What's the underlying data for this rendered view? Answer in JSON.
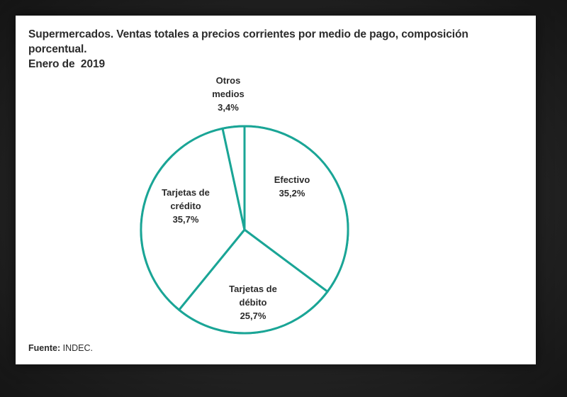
{
  "chart_data": {
    "type": "pie",
    "title": "Supermercados. Ventas totales a precios corrientes por medio de pago, composición porcentual.",
    "subtitle": "Enero de  2019",
    "slices": [
      {
        "label_lines": [
          "Efectivo"
        ],
        "value": 35.2,
        "value_label": "35,2%"
      },
      {
        "label_lines": [
          "Tarjetas de",
          "débito"
        ],
        "value": 25.7,
        "value_label": "25,7%"
      },
      {
        "label_lines": [
          "Tarjetas de",
          "crédito"
        ],
        "value": 35.7,
        "value_label": "35,7%"
      },
      {
        "label_lines": [
          "Otros",
          "medios"
        ],
        "value": 3.4,
        "value_label": "3,4%"
      }
    ],
    "colors": {
      "stroke": "#1aa596",
      "fill": "#ffffff",
      "text": "#2b2b2b"
    }
  },
  "source": {
    "label": "Fuente:",
    "value": "INDEC."
  }
}
